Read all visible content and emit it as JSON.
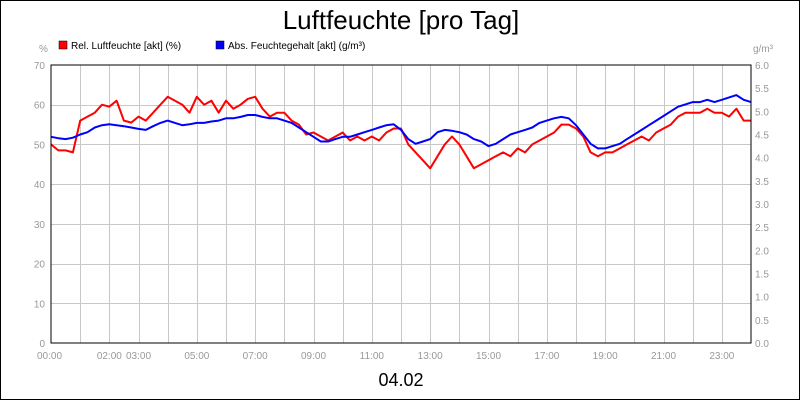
{
  "chart_data": {
    "type": "line",
    "title": "Luftfeuchte [pro Tag]",
    "date_label": "04.02",
    "left_unit": "%",
    "right_unit": "g/m³",
    "ylim_left": [
      0,
      70
    ],
    "ylim_right": [
      0,
      6
    ],
    "y_ticks_left": [
      "0",
      "10",
      "20",
      "30",
      "40",
      "50",
      "60",
      "70"
    ],
    "y_ticks_right": [
      "0.0",
      "0.5",
      "1.0",
      "1.5",
      "2.0",
      "2.5",
      "3.0",
      "3.5",
      "4.0",
      "4.5",
      "5.0",
      "5.5",
      "6.0"
    ],
    "x_ticks": [
      "00:00",
      "02:00",
      "03:00",
      "05:00",
      "07:00",
      "09:00",
      "11:00",
      "13:00",
      "15:00",
      "17:00",
      "19:00",
      "21:00",
      "23:00"
    ],
    "x_tick_hours": [
      0,
      2,
      3,
      5,
      7,
      9,
      11,
      13,
      15,
      17,
      19,
      21,
      23
    ],
    "xlim_hours": [
      0,
      24
    ],
    "grid": true,
    "legend_position": "top-left",
    "series": [
      {
        "name": "Rel. Luftfeuchte [akt] (%)",
        "color": "#ff0000",
        "axis": "left",
        "x": [
          0,
          0.25,
          0.5,
          0.75,
          1.0,
          1.25,
          1.5,
          1.75,
          2.0,
          2.25,
          2.5,
          2.75,
          3.0,
          3.25,
          3.5,
          3.75,
          4.0,
          4.25,
          4.5,
          4.75,
          5.0,
          5.25,
          5.5,
          5.75,
          6.0,
          6.25,
          6.5,
          6.75,
          7.0,
          7.25,
          7.5,
          7.75,
          8.0,
          8.25,
          8.5,
          8.75,
          9.0,
          9.25,
          9.5,
          9.75,
          10.0,
          10.25,
          10.5,
          10.75,
          11.0,
          11.25,
          11.5,
          11.75,
          12.0,
          12.25,
          12.5,
          12.75,
          13.0,
          13.25,
          13.5,
          13.75,
          14.0,
          14.25,
          14.5,
          14.75,
          15.0,
          15.25,
          15.5,
          15.75,
          16.0,
          16.25,
          16.5,
          16.75,
          17.0,
          17.25,
          17.5,
          17.75,
          18.0,
          18.25,
          18.5,
          18.75,
          19.0,
          19.25,
          19.5,
          19.75,
          20.0,
          20.25,
          20.5,
          20.75,
          21.0,
          21.25,
          21.5,
          21.75,
          22.0,
          22.25,
          22.5,
          22.75,
          23.0,
          23.25,
          23.5,
          23.75,
          24.0
        ],
        "y": [
          50,
          48.5,
          48.5,
          48,
          56,
          57,
          58,
          60,
          59.5,
          61,
          56,
          55.5,
          57,
          56,
          58,
          60,
          62,
          61,
          60,
          58,
          62,
          60,
          61,
          58,
          61,
          59,
          60,
          61.5,
          62,
          59,
          57,
          58,
          58,
          56,
          55,
          52.5,
          53,
          52,
          51,
          52,
          53,
          51,
          52,
          51,
          52,
          51,
          53,
          54,
          54,
          50,
          48,
          46,
          44,
          47,
          50,
          52,
          50,
          47,
          44,
          45,
          46,
          47,
          48,
          47,
          49,
          48,
          50,
          51,
          52,
          53,
          55,
          55,
          54,
          52,
          48,
          47,
          48,
          48,
          49,
          50,
          51,
          52,
          51,
          53,
          54,
          55,
          57,
          58,
          58,
          58,
          59,
          58,
          58,
          57,
          59,
          56,
          56
        ]
      },
      {
        "name": "Abs. Feuchtegehalt [akt] (g/m³)",
        "color": "#0000ff",
        "axis": "right",
        "x": [
          0,
          0.25,
          0.5,
          0.75,
          1.0,
          1.25,
          1.5,
          1.75,
          2.0,
          2.25,
          2.5,
          2.75,
          3.0,
          3.25,
          3.5,
          3.75,
          4.0,
          4.25,
          4.5,
          4.75,
          5.0,
          5.25,
          5.5,
          5.75,
          6.0,
          6.25,
          6.5,
          6.75,
          7.0,
          7.25,
          7.5,
          7.75,
          8.0,
          8.25,
          8.5,
          8.75,
          9.0,
          9.25,
          9.5,
          9.75,
          10.0,
          10.25,
          10.5,
          10.75,
          11.0,
          11.25,
          11.5,
          11.75,
          12.0,
          12.25,
          12.5,
          12.75,
          13.0,
          13.25,
          13.5,
          13.75,
          14.0,
          14.25,
          14.5,
          14.75,
          15.0,
          15.25,
          15.5,
          15.75,
          16.0,
          16.25,
          16.5,
          16.75,
          17.0,
          17.25,
          17.5,
          17.75,
          18.0,
          18.25,
          18.5,
          18.75,
          19.0,
          19.25,
          19.5,
          19.75,
          20.0,
          20.25,
          20.5,
          20.75,
          21.0,
          21.25,
          21.5,
          21.75,
          22.0,
          22.25,
          22.5,
          22.75,
          23.0,
          23.25,
          23.5,
          23.75,
          24.0
        ],
        "y": [
          4.45,
          4.42,
          4.4,
          4.43,
          4.5,
          4.55,
          4.65,
          4.7,
          4.72,
          4.7,
          4.68,
          4.65,
          4.62,
          4.6,
          4.68,
          4.75,
          4.8,
          4.75,
          4.7,
          4.72,
          4.75,
          4.75,
          4.78,
          4.8,
          4.85,
          4.85,
          4.88,
          4.92,
          4.92,
          4.88,
          4.85,
          4.85,
          4.8,
          4.75,
          4.65,
          4.55,
          4.45,
          4.35,
          4.35,
          4.4,
          4.45,
          4.45,
          4.5,
          4.55,
          4.6,
          4.65,
          4.7,
          4.72,
          4.6,
          4.4,
          4.3,
          4.35,
          4.4,
          4.55,
          4.6,
          4.58,
          4.55,
          4.5,
          4.4,
          4.35,
          4.25,
          4.3,
          4.4,
          4.5,
          4.55,
          4.6,
          4.65,
          4.75,
          4.8,
          4.85,
          4.88,
          4.85,
          4.7,
          4.5,
          4.3,
          4.2,
          4.2,
          4.25,
          4.3,
          4.4,
          4.5,
          4.6,
          4.7,
          4.8,
          4.9,
          5.0,
          5.1,
          5.15,
          5.2,
          5.2,
          5.25,
          5.2,
          5.25,
          5.3,
          5.35,
          5.25,
          5.2
        ]
      }
    ]
  }
}
